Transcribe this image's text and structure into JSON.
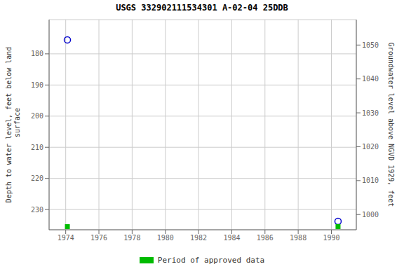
{
  "chart_data": {
    "type": "scatter",
    "title": "USGS 332902111534301 A-02-04 25DDB",
    "x": [
      1974.1,
      1990.4
    ],
    "series": [
      {
        "color": "#0000cc",
        "marker": "circle",
        "values": [
          175.5,
          233.8
        ]
      },
      {
        "name": "Period of approved data",
        "color": "#00bb00",
        "marker": "square",
        "values": [
          235.5,
          235.5
        ]
      }
    ],
    "ylabel": "Depth to water level, feet below land\n surface",
    "y2label": "Groundwater level above NGVD 1929, feet",
    "xlim": [
      1973.0,
      1991.5
    ],
    "xticks": [
      1974,
      1976,
      1978,
      1980,
      1982,
      1984,
      1986,
      1988,
      1990
    ],
    "ylim": [
      236.5,
      169.0
    ],
    "yticks": [
      180,
      190,
      200,
      210,
      220,
      230
    ],
    "y2lim": [
      995.5,
      1057.5
    ],
    "y2ticks": [
      1000,
      1010,
      1020,
      1030,
      1040,
      1050
    ],
    "grid": true
  }
}
